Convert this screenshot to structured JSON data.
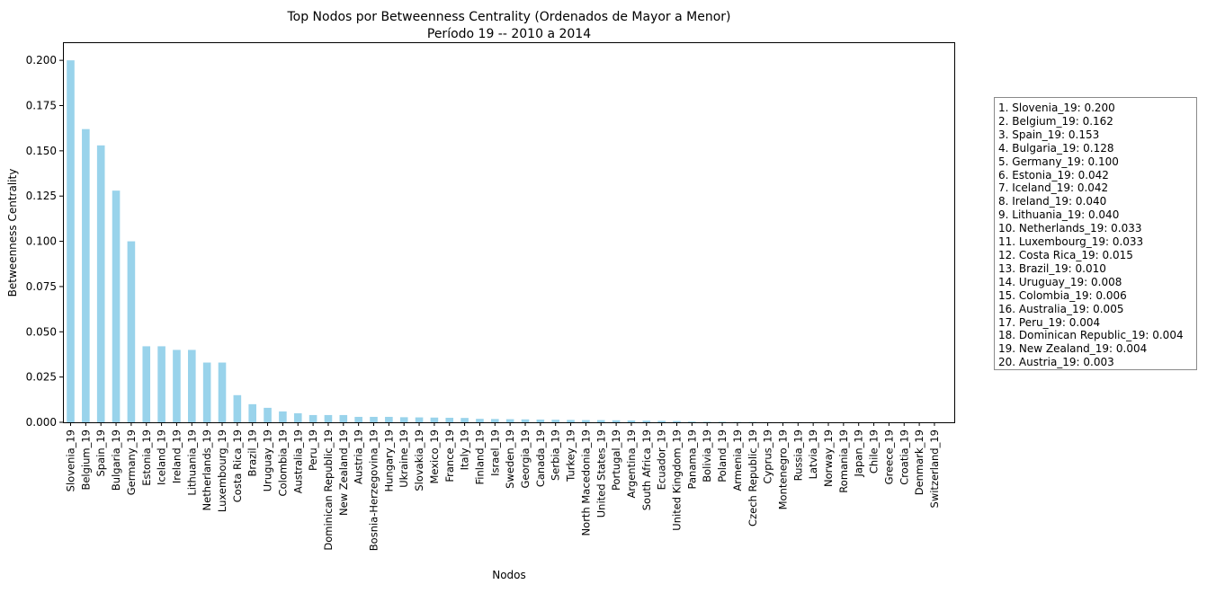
{
  "title": "Top Nodos por Betweenness Centrality (Ordenados de Mayor a Menor)",
  "subtitle": "Período 19 -- 2010 a 2014",
  "legend_lines": [
    "1. Slovenia_19: 0.200",
    "2. Belgium_19: 0.162",
    "3. Spain_19: 0.153",
    "4. Bulgaria_19: 0.128",
    "5. Germany_19: 0.100",
    "6. Estonia_19: 0.042",
    "7. Iceland_19: 0.042",
    "8. Ireland_19: 0.040",
    "9. Lithuania_19: 0.040",
    "10. Netherlands_19: 0.033",
    "11. Luxembourg_19: 0.033",
    "12. Costa Rica_19: 0.015",
    "13. Brazil_19: 0.010",
    "14. Uruguay_19: 0.008",
    "15. Colombia_19: 0.006",
    "16. Australia_19: 0.005",
    "17. Peru_19: 0.004",
    "18. Dominican Republic_19: 0.004",
    "19. New Zealand_19: 0.004",
    "20. Austria_19: 0.003"
  ],
  "chart_data": {
    "type": "bar",
    "title": "Top Nodos por Betweenness Centrality (Ordenados de Mayor a Menor)",
    "subtitle": "Período 19 -- 2010 a 2014",
    "xlabel": "Nodos",
    "ylabel": "Betweenness Centrality",
    "ylim": [
      0,
      0.21
    ],
    "yticks": [
      "0.000",
      "0.025",
      "0.050",
      "0.075",
      "0.100",
      "0.125",
      "0.150",
      "0.175",
      "0.200"
    ],
    "grid": false,
    "legend_position": "right",
    "bar_color": "#99d3eb",
    "categories": [
      "Slovenia_19",
      "Belgium_19",
      "Spain_19",
      "Bulgaria_19",
      "Germany_19",
      "Estonia_19",
      "Iceland_19",
      "Ireland_19",
      "Lithuania_19",
      "Netherlands_19",
      "Luxembourg_19",
      "Costa Rica_19",
      "Brazil_19",
      "Uruguay_19",
      "Colombia_19",
      "Australia_19",
      "Peru_19",
      "Dominican Republic_19",
      "New Zealand_19",
      "Austria_19",
      "Bosnia-Herzegovina_19",
      "Hungary_19",
      "Ukraine_19",
      "Slovakia_19",
      "Mexico_19",
      "France_19",
      "Italy_19",
      "Finland_19",
      "Israel_19",
      "Sweden_19",
      "Georgia_19",
      "Canada_19",
      "Serbia_19",
      "Turkey_19",
      "North Macedonia_19",
      "United States_19",
      "Portugal_19",
      "Argentina_19",
      "South Africa_19",
      "Ecuador_19",
      "United Kingdom_19",
      "Panama_19",
      "Bolivia_19",
      "Poland_19",
      "Armenia_19",
      "Czech Republic_19",
      "Cyprus_19",
      "Montenegro_19",
      "Russia_19",
      "Latvia_19",
      "Norway_19",
      "Romania_19",
      "Japan_19",
      "Chile_19",
      "Greece_19",
      "Croatia_19",
      "Denmark_19",
      "Switzerland_19"
    ],
    "values": [
      0.2,
      0.162,
      0.153,
      0.128,
      0.1,
      0.042,
      0.042,
      0.04,
      0.04,
      0.033,
      0.033,
      0.015,
      0.01,
      0.008,
      0.006,
      0.005,
      0.004,
      0.004,
      0.004,
      0.003,
      0.003,
      0.003,
      0.0028,
      0.0027,
      0.0026,
      0.0025,
      0.0024,
      0.0019,
      0.0018,
      0.0017,
      0.0016,
      0.0015,
      0.0014,
      0.0013,
      0.0012,
      0.0012,
      0.0011,
      0.001,
      0.0009,
      0.0008,
      0.0007,
      0.0004,
      0.0003,
      0.0003,
      0.0002,
      0.0002,
      0.0001,
      0.0001,
      0.0001,
      0.0001,
      0,
      0,
      0,
      0,
      0,
      0,
      0,
      0
    ]
  }
}
